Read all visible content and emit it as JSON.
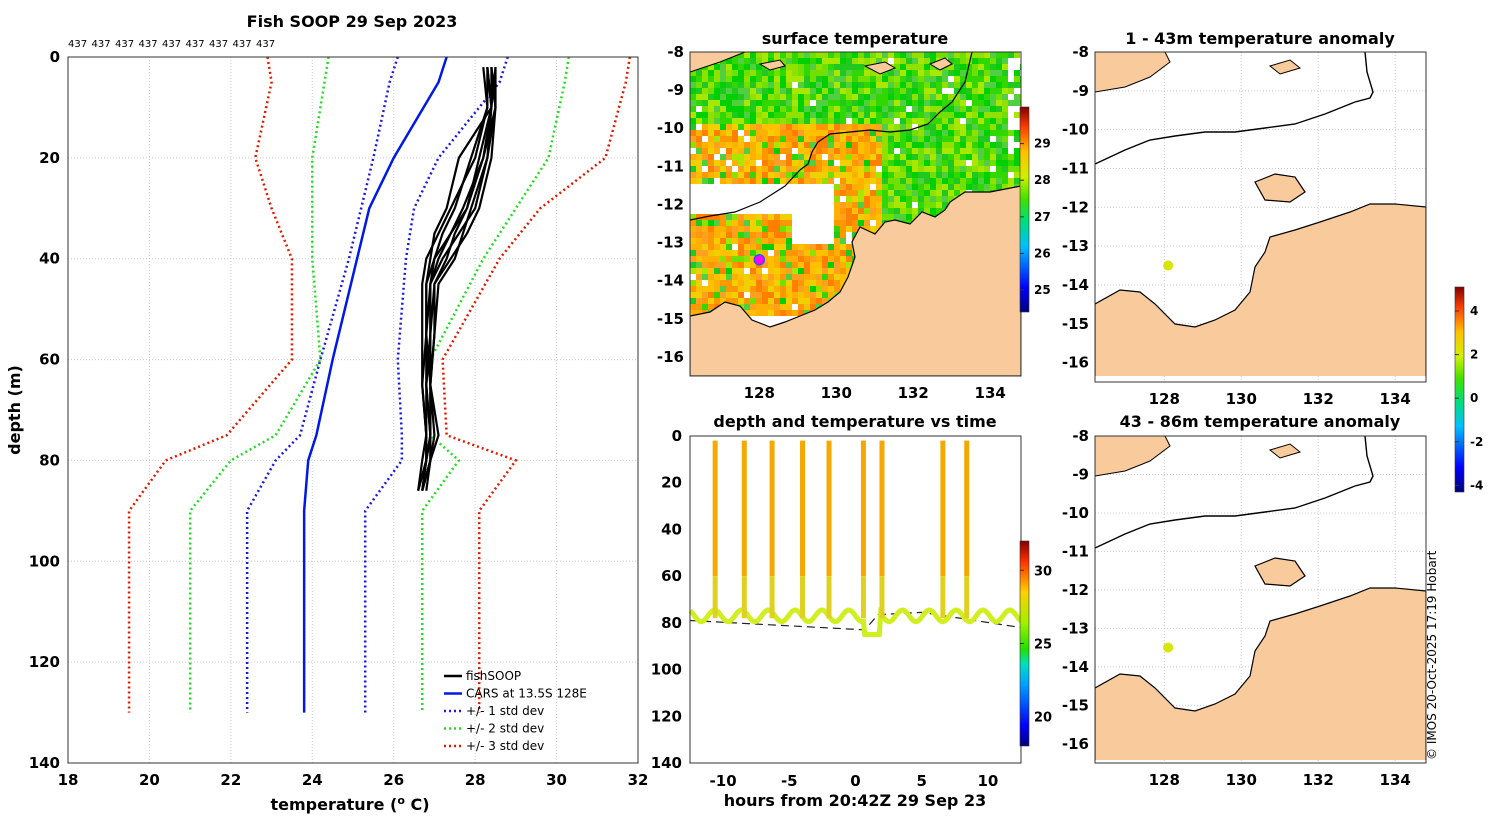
{
  "colors": {
    "land": "#f9cb9c",
    "fish": "#000000",
    "cars": "#0018e8",
    "std1": "#1a1ae0",
    "std2": "#22dd22",
    "std3": "#e01a00",
    "grid": "#cccccc"
  },
  "chart_data": [
    {
      "type": "line",
      "title": "Fish SOOP 29 Sep 2023",
      "header_counts": [
        "437",
        "437",
        "437",
        "437",
        "437",
        "437",
        "437",
        "437",
        "437"
      ],
      "xlabel": "temperature (",
      "xlabel_sup": "o",
      "xlabel_tail": " C)",
      "ylabel": "depth (m)",
      "xlim": [
        18,
        32
      ],
      "ylim": [
        140,
        0
      ],
      "xticks": [
        "18",
        "20",
        "22",
        "24",
        "26",
        "28",
        "30",
        "32"
      ],
      "yticks": [
        "0",
        "20",
        "40",
        "60",
        "80",
        "100",
        "120",
        "140"
      ],
      "legend": {
        "placement": "bottom-right",
        "entries": [
          "fishSOOP",
          "CARS at 13.5S 128E",
          "+/- 1 std dev",
          "+/- 2 std dev",
          "+/- 3 std dev"
        ]
      },
      "depth": [
        0,
        5,
        20,
        30,
        40,
        60,
        75,
        80,
        90,
        130
      ],
      "series": [
        {
          "name": "CARS mean",
          "values": [
            27.3,
            27.1,
            26.0,
            25.4,
            25.1,
            24.5,
            24.1,
            23.9,
            23.8,
            23.8
          ]
        },
        {
          "name": "-1 std",
          "values": [
            26.1,
            25.9,
            25.5,
            25.2,
            24.9,
            24.2,
            23.7,
            23.1,
            22.4,
            22.4
          ]
        },
        {
          "name": "+1 std",
          "values": [
            28.8,
            28.6,
            27.1,
            26.5,
            26.3,
            26.1,
            26.2,
            26.2,
            25.3,
            25.3
          ]
        },
        {
          "name": "-2 std",
          "values": [
            24.4,
            24.3,
            24.0,
            24.0,
            24.0,
            24.2,
            23.1,
            22.0,
            21.0,
            21.0
          ]
        },
        {
          "name": "+2 std",
          "values": [
            30.3,
            30.2,
            29.8,
            29.0,
            28.2,
            26.9,
            26.9,
            27.6,
            26.7,
            26.7
          ]
        },
        {
          "name": "-3 std",
          "values": [
            22.9,
            23.0,
            22.6,
            23.0,
            23.5,
            23.5,
            21.9,
            20.4,
            19.5,
            19.5
          ]
        },
        {
          "name": "+3 std",
          "values": [
            31.8,
            31.7,
            31.2,
            29.6,
            28.6,
            27.2,
            27.3,
            29.0,
            28.1,
            28.1
          ]
        }
      ],
      "fish_profiles": {
        "depth": [
          2,
          10,
          20,
          30,
          35,
          40,
          45,
          55,
          65,
          75,
          80,
          86
        ],
        "profiles": [
          [
            28.3,
            28.4,
            28.2,
            27.7,
            27.4,
            27.1,
            26.9,
            26.8,
            26.7,
            26.8,
            26.7,
            26.6
          ],
          [
            28.4,
            28.5,
            28.4,
            28.1,
            27.8,
            27.4,
            27.0,
            26.9,
            26.9,
            26.9,
            26.8,
            26.7
          ],
          [
            28.2,
            28.3,
            28.0,
            27.4,
            27.1,
            26.8,
            26.7,
            26.7,
            26.7,
            26.8,
            26.8,
            26.6
          ],
          [
            28.5,
            28.5,
            28.3,
            28.0,
            27.6,
            27.2,
            26.9,
            26.9,
            26.8,
            26.9,
            26.9,
            26.7
          ],
          [
            28.3,
            28.4,
            27.6,
            27.3,
            27.0,
            26.9,
            26.8,
            26.8,
            26.9,
            27.0,
            26.9,
            26.7
          ],
          [
            28.4,
            28.4,
            28.1,
            27.8,
            27.5,
            27.3,
            27.0,
            27.0,
            26.9,
            26.9,
            26.8,
            26.7
          ],
          [
            28.5,
            28.4,
            28.3,
            27.9,
            27.7,
            27.5,
            27.1,
            27.0,
            26.9,
            27.1,
            26.9,
            26.8
          ],
          [
            28.3,
            28.3,
            27.9,
            27.5,
            27.2,
            27.0,
            26.8,
            26.8,
            26.8,
            26.8,
            26.8,
            26.6
          ],
          [
            28.4,
            28.5,
            28.2,
            27.8,
            27.4,
            27.0,
            26.9,
            26.9,
            26.8,
            26.9,
            26.9,
            26.7
          ]
        ]
      }
    },
    {
      "type": "heatmap",
      "title": "surface temperature",
      "xlim": [
        126.2,
        134.8
      ],
      "ylim": [
        -16.5,
        -8
      ],
      "xticks": [
        "128",
        "130",
        "132",
        "134"
      ],
      "yticks": [
        "-8",
        "-9",
        "-10",
        "-11",
        "-12",
        "-13",
        "-14",
        "-15",
        "-16"
      ],
      "colorbar": {
        "min": 24.4,
        "max": 30,
        "ticks": [
          "25",
          "26",
          "27",
          "28",
          "29"
        ]
      },
      "vessel_position": [
        128,
        -13.45
      ]
    },
    {
      "type": "line",
      "title": "depth and temperature vs time",
      "xlabel": "hours from 20:42Z 29 Sep 23",
      "xlim": [
        -12.5,
        12.5
      ],
      "ylim": [
        140,
        0
      ],
      "xticks": [
        "-10",
        "-5",
        "0",
        "5",
        "10"
      ],
      "yticks": [
        "0",
        "20",
        "40",
        "60",
        "80",
        "100",
        "120",
        "140"
      ],
      "colorbar": {
        "min": 18,
        "max": 32,
        "ticks": [
          "20",
          "25",
          "30"
        ]
      },
      "dive_times": [
        -10.6,
        -8.4,
        -6.3,
        -4.0,
        -2.0,
        0.6,
        2.0,
        6.6,
        8.4
      ],
      "bottom_depth": {
        "x": [
          -12.5,
          0.7,
          1.7,
          5.0,
          12.5
        ],
        "y": [
          79,
          83,
          76.5,
          75.5,
          82
        ]
      }
    },
    {
      "type": "heatmap",
      "title": "1 - 43m temperature anomaly",
      "xlim": [
        126.2,
        134.8
      ],
      "ylim": [
        -16.5,
        -8
      ],
      "xticks": [
        "128",
        "130",
        "132",
        "134"
      ],
      "yticks": [
        "-8",
        "-9",
        "-10",
        "-11",
        "-12",
        "-13",
        "-14",
        "-15",
        "-16"
      ],
      "anomaly_point": [
        128.1,
        -13.5
      ]
    },
    {
      "type": "heatmap",
      "title": "43 - 86m temperature anomaly",
      "xlim": [
        126.2,
        134.8
      ],
      "ylim": [
        -16.5,
        -8
      ],
      "xticks": [
        "128",
        "130",
        "132",
        "134"
      ],
      "yticks": [
        "-8",
        "-9",
        "-10",
        "-11",
        "-12",
        "-13",
        "-14",
        "-15",
        "-16"
      ],
      "anomaly_point": [
        128.1,
        -13.5
      ],
      "colorbar": {
        "min": -4.3,
        "max": 5.1,
        "ticks": [
          "4",
          "2",
          "0",
          "-2",
          "-4"
        ]
      }
    }
  ],
  "credit": "© IMOS 20-Oct-2025 17:19 Hobart"
}
